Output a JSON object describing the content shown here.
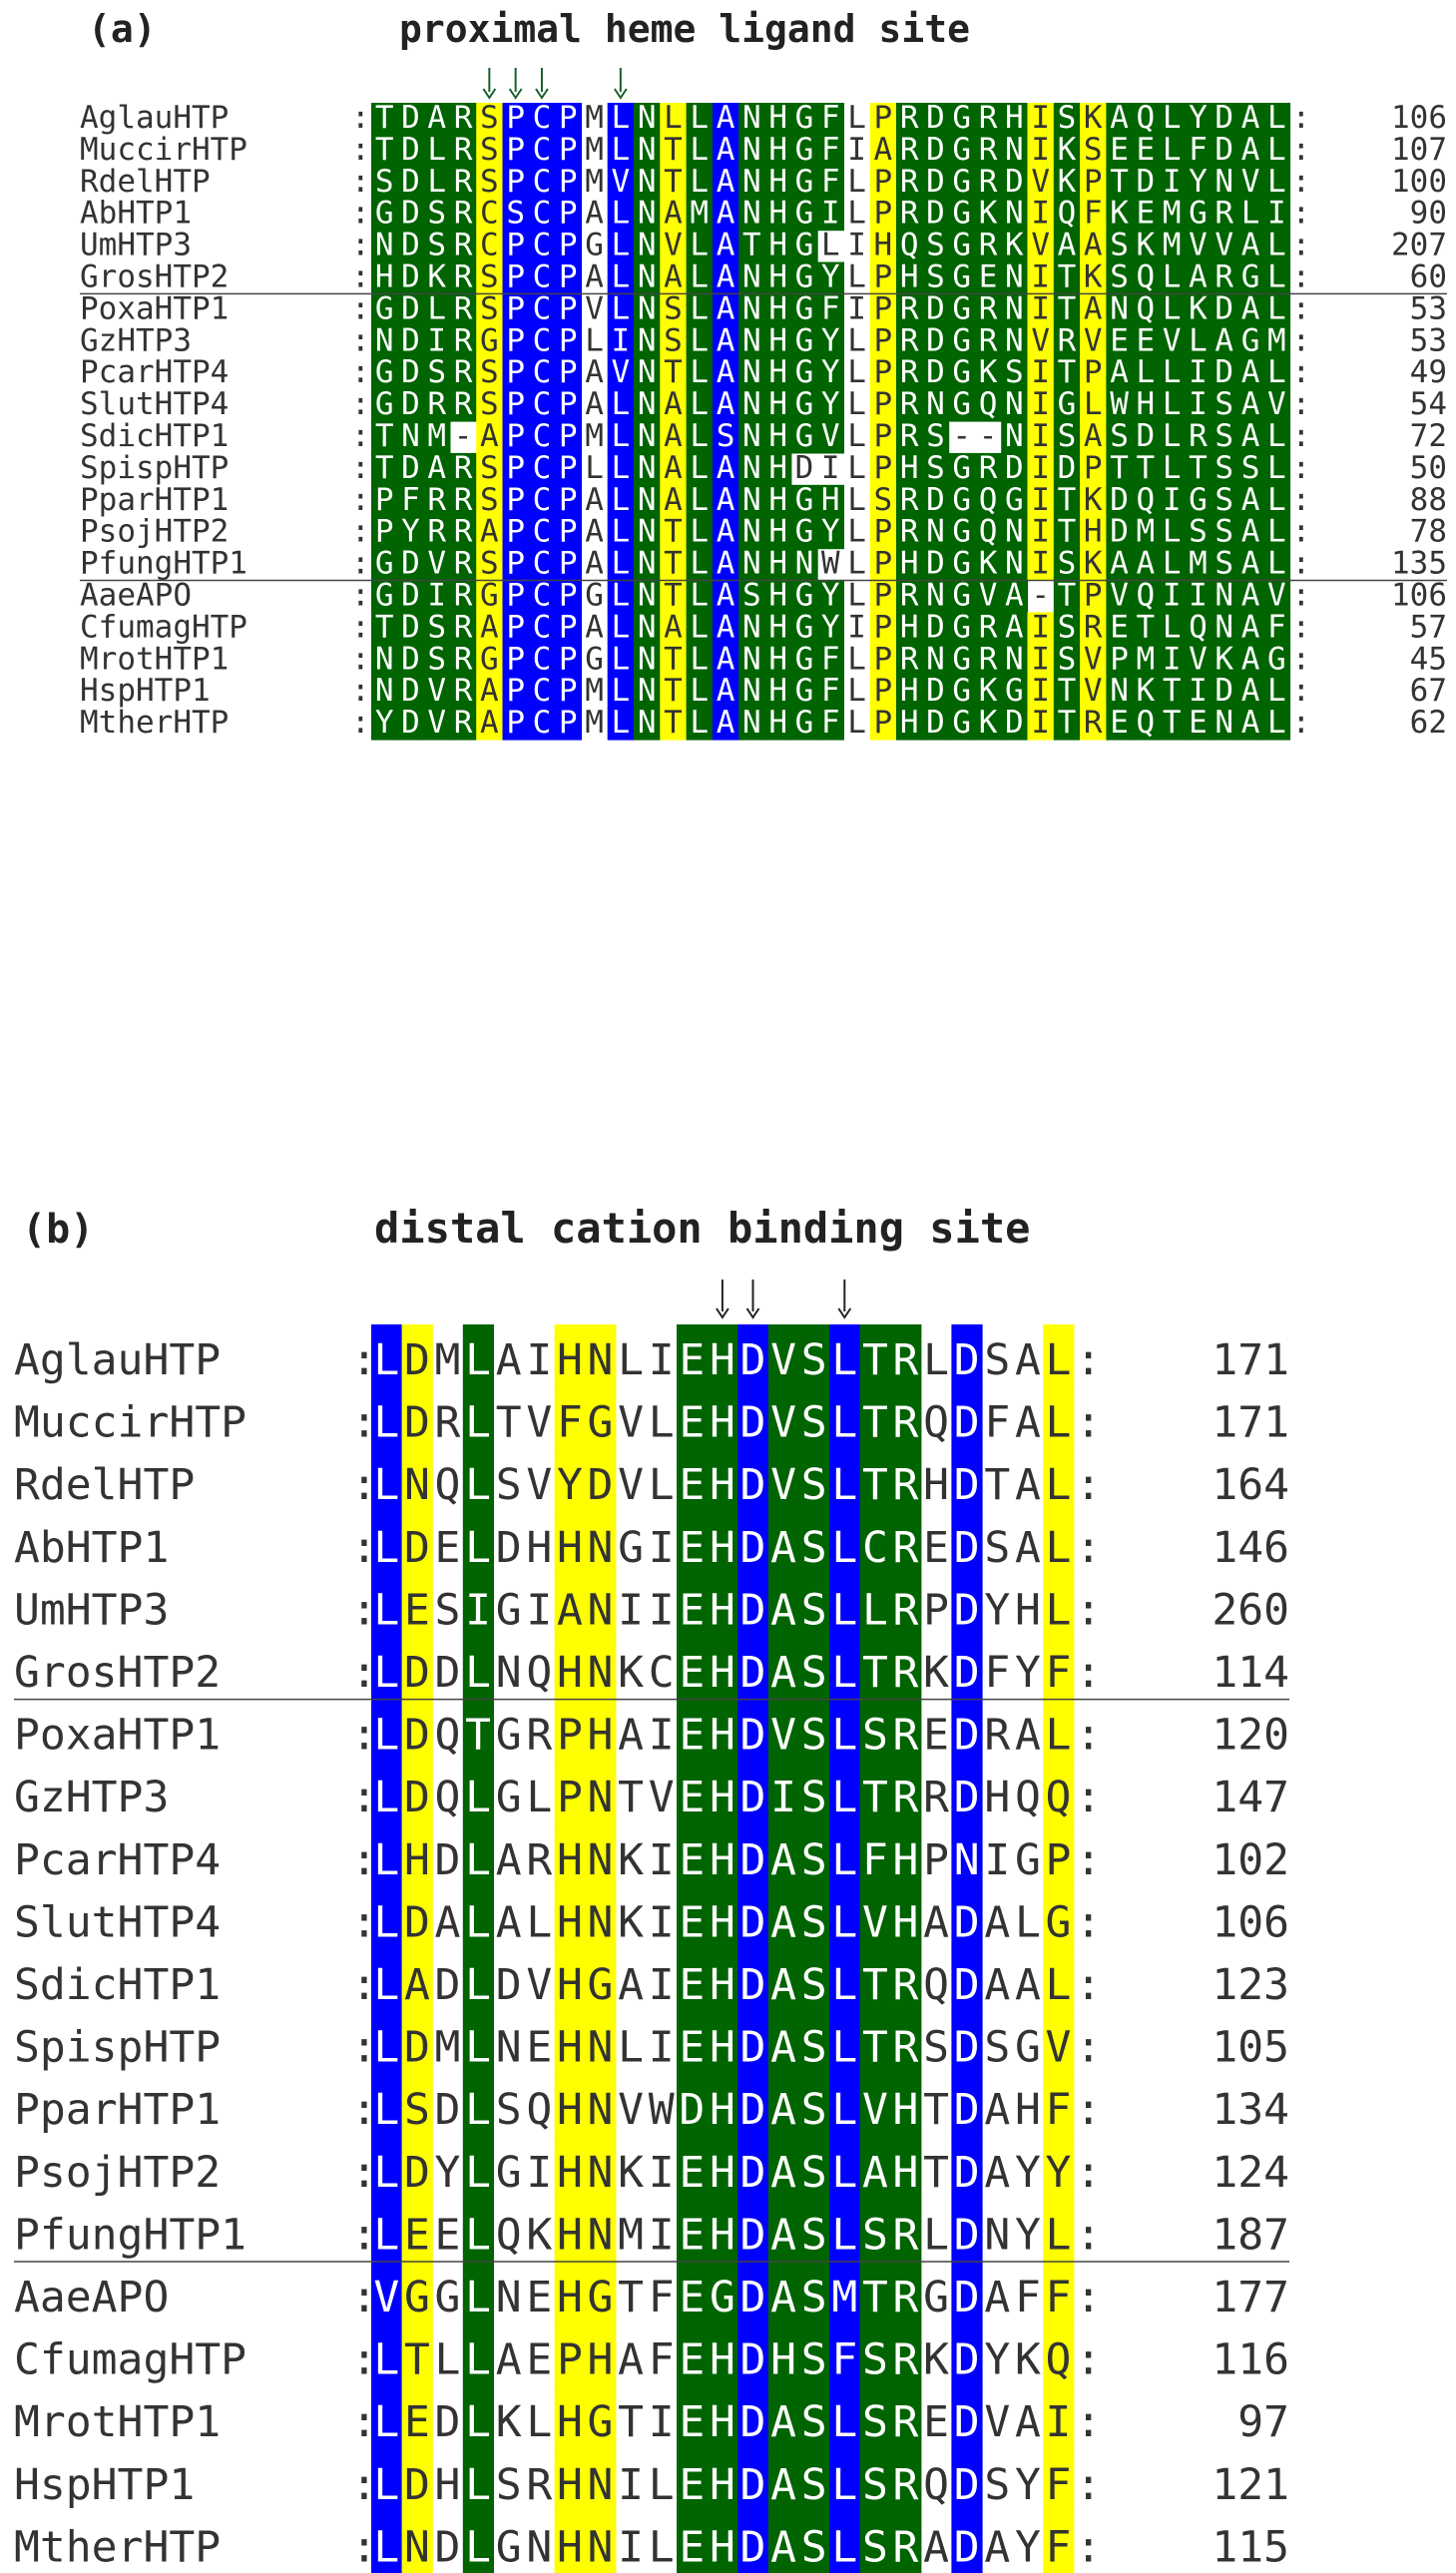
{
  "panel_a": {
    "panel_label": "(a)",
    "title": "proximal heme ligand site",
    "arrow_columns": [
      4,
      5,
      6,
      9
    ],
    "separators_after_rows": [
      5,
      14
    ],
    "rows": [
      {
        "name": "AglauHTP",
        "seq": "TDARSPCPMLNLLANHGFLPRDGRHISKAQLYDAL",
        "num": "106"
      },
      {
        "name": "MuccirHTP",
        "seq": "TDLRSPCPMLNTLANHGFIARDGRNIKSEELFDAL",
        "num": "107"
      },
      {
        "name": "RdelHTP",
        "seq": "SDLRSPCPMVNTLANHGFLPRDGRDVKPTDIYNVL",
        "num": "100"
      },
      {
        "name": "AbHTP1",
        "seq": "GDSRCSCPALNAMANHGILPRDGKNIQFKEMGRLI",
        "num": "90"
      },
      {
        "name": "UmHTP3",
        "seq": "NDSRCPCPGLNVLATHGLIHQSGRKVAASKMVVAL",
        "num": "207"
      },
      {
        "name": "GrosHTP2",
        "seq": "HDKRSPCPALNALANHGYLPHSGENITKSQLARGL",
        "num": "60"
      },
      {
        "name": "PoxaHTP1",
        "seq": "GDLRSPCPVLNSLANHGFIPRDGRNITANQLKDAL",
        "num": "53"
      },
      {
        "name": "GzHTP3",
        "seq": "NDIRGPCPLINSLANHGYLPRDGRNVRVEEVLAGM",
        "num": "53"
      },
      {
        "name": "PcarHTP4",
        "seq": "GDSRSPCPAVNTLANHGYLPRDGKSITPALLIDAL",
        "num": "49"
      },
      {
        "name": "SlutHTP4",
        "seq": "GDRRSPCPALNALANHGYLPRNGQNIGLWHLISAV",
        "num": "54"
      },
      {
        "name": "SdicHTP1",
        "seq": "TNM-APCPMLNALSNHGVLPRS--NISASDLRSAL",
        "num": "72"
      },
      {
        "name": "SpispHTP",
        "seq": "TDARSPCPLLNALANHDILPHSGRDIDPTTLTSSL",
        "num": "50"
      },
      {
        "name": "PparHTP1",
        "seq": "PFRRSPCPALNALANHGHLSRDGQGITKDQIGSAL",
        "num": "88"
      },
      {
        "name": "PsojHTP2",
        "seq": "PYRRAPCPALNTLANHGYLPRNGQNITHDMLSSAL",
        "num": "78"
      },
      {
        "name": "PfungHTP1",
        "seq": "GDVRSPCPALNTLANHNWLPHDGKNISKAALMSAL",
        "num": "135"
      },
      {
        "name": "AaeAPO",
        "seq": "GDIRGPCPGLNTLASHGYLPRNGVA-TPVQIINAV",
        "num": "106"
      },
      {
        "name": "CfumagHTP",
        "seq": "TDSRAPCPALNALANHGYIPHDGRAISRETLQNAF",
        "num": "57"
      },
      {
        "name": "MrotHTP1",
        "seq": "NDSRGPCPGLNTLANHGFLPRNGRNISVPMIVKAG",
        "num": "45"
      },
      {
        "name": "HspHTP1",
        "seq": "NDVRAPCPMLNTLANHGFLPHDGKGITVNKTIDAL",
        "num": "67"
      },
      {
        "name": "MtherHTP",
        "seq": "YDVRAPCPMLNTLANHGFLPHDGKDITREQTENAL",
        "num": "62"
      }
    ],
    "shading": {
      "green": [
        [
          0,
          1,
          2,
          3,
          10,
          12,
          14,
          15,
          16,
          17,
          19,
          20,
          21,
          22,
          23,
          24,
          25,
          26,
          27,
          28,
          29,
          30,
          31,
          32,
          33,
          34
        ],
        [
          0,
          1,
          2,
          3,
          10,
          12,
          14,
          15,
          16,
          17,
          19,
          20,
          21,
          22,
          23,
          24,
          25,
          26,
          27,
          28,
          29,
          30,
          31,
          32,
          33,
          34
        ],
        [
          0,
          1,
          2,
          3,
          10,
          12,
          14,
          15,
          16,
          17,
          19,
          20,
          21,
          22,
          23,
          24,
          25,
          26,
          27,
          28,
          29,
          30,
          31,
          32,
          33,
          34
        ],
        [
          0,
          1,
          2,
          3,
          10,
          12,
          14,
          15,
          16,
          17,
          19,
          20,
          21,
          22,
          23,
          24,
          25,
          26,
          27,
          28,
          29,
          30,
          31,
          32,
          33,
          34
        ],
        [
          0,
          1,
          2,
          3,
          10,
          12,
          14,
          15,
          16,
          19,
          20,
          21,
          22,
          23,
          24,
          25,
          26,
          27,
          28,
          29,
          30,
          31,
          32,
          33,
          34
        ],
        [
          0,
          1,
          2,
          3,
          10,
          12,
          14,
          15,
          16,
          17,
          19,
          20,
          21,
          22,
          23,
          24,
          25,
          26,
          27,
          28,
          29,
          30,
          31,
          32,
          33,
          34
        ],
        [
          0,
          1,
          2,
          3,
          10,
          12,
          14,
          15,
          16,
          17,
          19,
          20,
          21,
          22,
          23,
          24,
          25,
          26,
          27,
          28,
          29,
          30,
          31,
          32,
          33,
          34
        ],
        [
          0,
          1,
          2,
          3,
          10,
          12,
          14,
          15,
          16,
          17,
          19,
          20,
          21,
          22,
          23,
          24,
          25,
          26,
          27,
          28,
          29,
          30,
          31,
          32,
          33,
          34
        ],
        [
          0,
          1,
          2,
          3,
          10,
          12,
          14,
          15,
          16,
          17,
          19,
          20,
          21,
          22,
          23,
          24,
          25,
          26,
          27,
          28,
          29,
          30,
          31,
          32,
          33,
          34
        ],
        [
          0,
          1,
          2,
          3,
          10,
          12,
          14,
          15,
          16,
          17,
          19,
          20,
          21,
          22,
          23,
          24,
          25,
          26,
          27,
          28,
          29,
          30,
          31,
          32,
          33,
          34
        ],
        [
          0,
          1,
          2,
          3,
          10,
          12,
          14,
          15,
          16,
          17,
          19,
          20,
          21,
          22,
          23,
          24,
          25,
          26,
          27,
          28,
          29,
          30,
          31,
          32,
          33,
          34
        ],
        [
          0,
          1,
          2,
          3,
          10,
          12,
          14,
          15,
          19,
          20,
          21,
          22,
          23,
          24,
          25,
          26,
          27,
          28,
          29,
          30,
          31,
          32,
          33,
          34
        ],
        [
          0,
          1,
          2,
          3,
          10,
          12,
          14,
          15,
          16,
          17,
          19,
          20,
          21,
          22,
          23,
          24,
          25,
          26,
          27,
          28,
          29,
          30,
          31,
          32,
          33,
          34
        ],
        [
          0,
          1,
          2,
          3,
          10,
          12,
          14,
          15,
          16,
          17,
          19,
          20,
          21,
          22,
          23,
          24,
          25,
          26,
          27,
          28,
          29,
          30,
          31,
          32,
          33,
          34
        ],
        [
          0,
          1,
          2,
          3,
          10,
          12,
          14,
          15,
          16,
          19,
          20,
          21,
          22,
          23,
          24,
          25,
          26,
          27,
          28,
          29,
          30,
          31,
          32,
          33,
          34
        ],
        [
          0,
          1,
          2,
          3,
          10,
          12,
          14,
          15,
          16,
          17,
          19,
          20,
          21,
          22,
          23,
          24,
          25,
          26,
          27,
          28,
          29,
          30,
          31,
          32,
          33,
          34
        ],
        [
          0,
          1,
          2,
          3,
          10,
          12,
          14,
          15,
          16,
          17,
          19,
          20,
          21,
          22,
          23,
          24,
          25,
          26,
          27,
          28,
          29,
          30,
          31,
          32,
          33,
          34
        ],
        [
          0,
          1,
          2,
          3,
          10,
          12,
          14,
          15,
          16,
          17,
          19,
          20,
          21,
          22,
          23,
          24,
          25,
          26,
          27,
          28,
          29,
          30,
          31,
          32,
          33,
          34
        ],
        [
          0,
          1,
          2,
          3,
          10,
          12,
          14,
          15,
          16,
          17,
          19,
          20,
          21,
          22,
          23,
          24,
          25,
          26,
          27,
          28,
          29,
          30,
          31,
          32,
          33,
          34
        ],
        [
          0,
          1,
          2,
          3,
          10,
          12,
          14,
          15,
          16,
          17,
          19,
          20,
          21,
          22,
          23,
          24,
          25,
          26,
          27,
          28,
          29,
          30,
          31,
          32,
          33,
          34
        ]
      ],
      "blue_cols": [
        5,
        6,
        7,
        9,
        13
      ],
      "yellow_cols": [
        4,
        11,
        19,
        25,
        27
      ]
    }
  },
  "panel_b": {
    "panel_label": "(b)",
    "title": "distal cation binding site",
    "arrow_columns": [
      11,
      12,
      15
    ],
    "separators_after_rows": [
      5,
      14
    ],
    "rows": [
      {
        "name": "AglauHTP",
        "seq": "LDMLAIHNLIEHDVSLTRLDSAL",
        "num": "171"
      },
      {
        "name": "MuccirHTP",
        "seq": "LDRLTVFGVLEHDVSLTRQDFAL",
        "num": "171"
      },
      {
        "name": "RdelHTP",
        "seq": "LNQLSVYDVLEHDVSLTRHDTAL",
        "num": "164"
      },
      {
        "name": "AbHTP1",
        "seq": "LDELDHHNGIEHDASLCREDSAL",
        "num": "146"
      },
      {
        "name": "UmHTP3",
        "seq": "LESIGIANIIEHDASLLRPDYHL",
        "num": "260"
      },
      {
        "name": "GrosHTP2",
        "seq": "LDDLNQHNKCEHDASLTRKDFYF",
        "num": "114"
      },
      {
        "name": "PoxaHTP1",
        "seq": "LDQTGRPHAIEHDVSLSREDRAL",
        "num": "120"
      },
      {
        "name": "GzHTP3",
        "seq": "LDQLGLPNTVEHDISLTRRDHQQ",
        "num": "147"
      },
      {
        "name": "PcarHTP4",
        "seq": "LHDLARHNKIEHDASLFHPNIGP",
        "num": "102"
      },
      {
        "name": "SlutHTP4",
        "seq": "LDALALHNKIEHDASLVHADALG",
        "num": "106"
      },
      {
        "name": "SdicHTP1",
        "seq": "LADLDVHGAIEHDASLTRQDAAL",
        "num": "123"
      },
      {
        "name": "SpispHTP",
        "seq": "LDMLNEHNLIEHDASLTRSDSGV",
        "num": "105"
      },
      {
        "name": "PparHTP1",
        "seq": "LSDLSQHNVWDHDASLVHTDAHF",
        "num": "134"
      },
      {
        "name": "PsojHTP2",
        "seq": "LDYLGIHNKIEHDASLAHTDAYY",
        "num": "124"
      },
      {
        "name": "PfungHTP1",
        "seq": "LEELQKHNMIEHDASLSRLDNYL",
        "num": "187"
      },
      {
        "name": "AaeAPO",
        "seq": "VGGLNEHGTFEGDASMTRGDAFF",
        "num": "177"
      },
      {
        "name": "CfumagHTP",
        "seq": "LTLLAEPHAFEHDHSFSRKDYKQ",
        "num": "116"
      },
      {
        "name": "MrotHTP1",
        "seq": "LEDLKLHGTIEHDASLSREDVAI",
        "num": "97"
      },
      {
        "name": "HspHTP1",
        "seq": "LDHLSRHNILEHDASLSRQDSYF",
        "num": "121"
      },
      {
        "name": "MtherHTP",
        "seq": "LNDLGNHNILEHDASLSRADAYF",
        "num": "115"
      }
    ],
    "shading": {
      "blue_cols": [
        0,
        12,
        15,
        19
      ],
      "green_cols": [
        3,
        10,
        11,
        13,
        14,
        16,
        17
      ],
      "yellow_cols": [
        1,
        6,
        7,
        22
      ]
    }
  },
  "colors": {
    "green": "#006400",
    "blue": "#0000ff",
    "yellow": "#ffff00",
    "text_plain": "#333333",
    "text_on_dark": "#ffffff",
    "text_on_yellow": "#333333"
  }
}
